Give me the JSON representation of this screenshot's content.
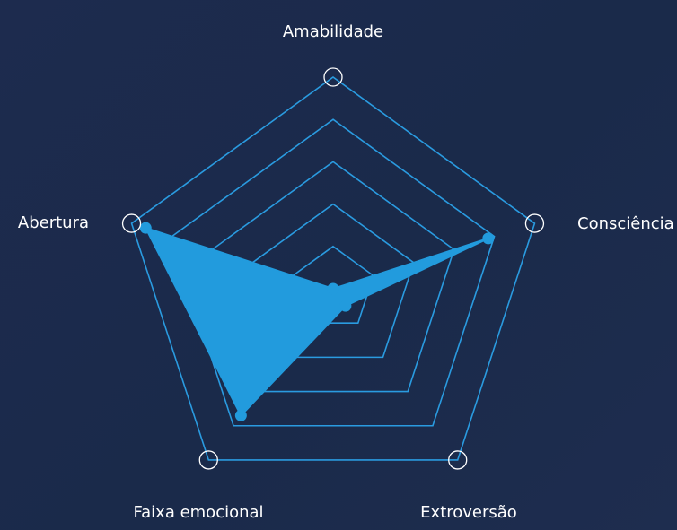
{
  "chart_data": {
    "type": "radar",
    "indicators": [
      {
        "name": "Amabilidade",
        "value": 0.0
      },
      {
        "name": "Consciência",
        "value": 0.77
      },
      {
        "name": "Extroversão",
        "value": 0.1
      },
      {
        "name": "Faixa emocional",
        "value": 0.74
      },
      {
        "name": "Abertura",
        "value": 0.93
      }
    ],
    "range": [
      0,
      1
    ],
    "rings": 5,
    "legend": "none",
    "colors": {
      "area": "#229bdd",
      "grid": "#2a9be0",
      "marker_ring": "#ffffff",
      "label": "#ffffff"
    }
  }
}
